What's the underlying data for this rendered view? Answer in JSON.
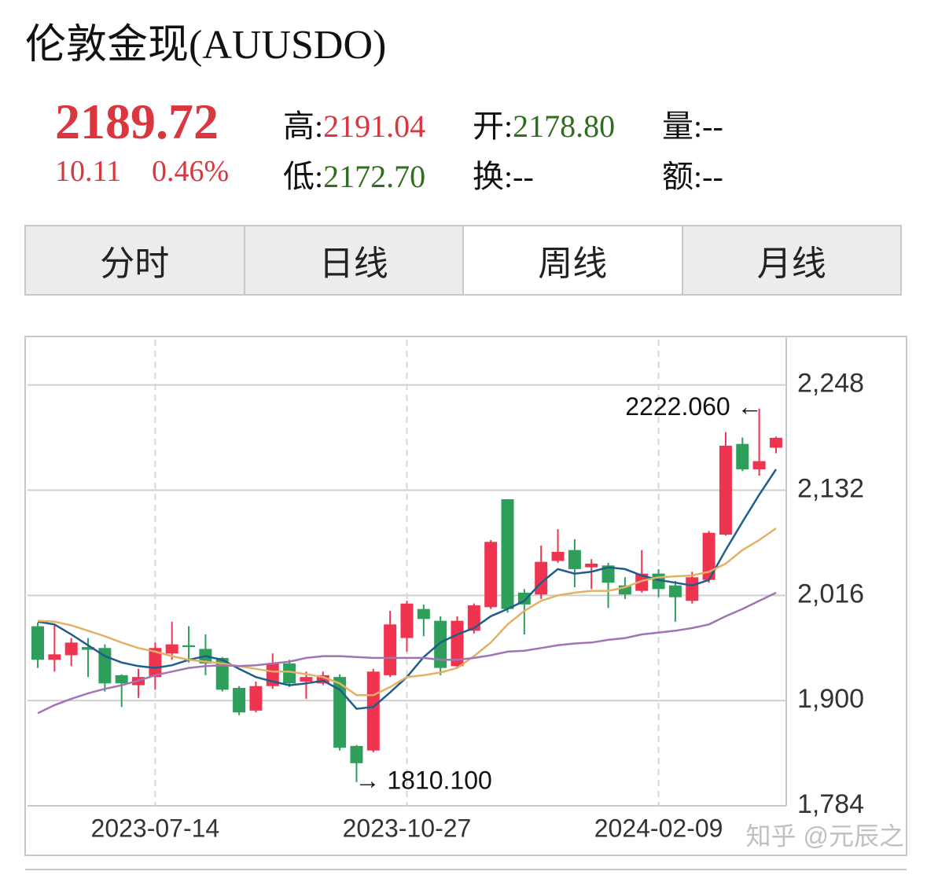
{
  "header": {
    "title": "伦敦金现(AUUSDO)",
    "price": "2189.72",
    "change": "10.11",
    "change_pct": "0.46%",
    "stats": [
      {
        "label": "高:",
        "value": "2191.04",
        "tone": "up"
      },
      {
        "label": "开:",
        "value": "2178.80",
        "tone": "down"
      },
      {
        "label": "量:",
        "value": "--",
        "tone": "plain"
      },
      {
        "label": "低:",
        "value": "2172.70",
        "tone": "down"
      },
      {
        "label": "换:",
        "value": "--",
        "tone": "plain"
      },
      {
        "label": "额:",
        "value": "--",
        "tone": "plain"
      }
    ]
  },
  "tabs": {
    "items": [
      "分时",
      "日线",
      "周线",
      "月线"
    ],
    "selected": 2
  },
  "chart_data": {
    "type": "candlestick",
    "categories": [
      null,
      null,
      null,
      null,
      null,
      null,
      null,
      "2023-07-14",
      null,
      null,
      null,
      null,
      null,
      null,
      null,
      null,
      null,
      null,
      null,
      null,
      null,
      null,
      "2023-10-27",
      null,
      null,
      null,
      null,
      null,
      null,
      null,
      null,
      null,
      null,
      null,
      null,
      null,
      null,
      "2024-02-09",
      null,
      null,
      null,
      null,
      null,
      null,
      null
    ],
    "open": [
      1982,
      1945,
      1950,
      1959,
      1958,
      1928,
      1917,
      1926,
      1952,
      1961,
      1957,
      1947,
      1914,
      1889,
      1916,
      1941,
      1921,
      1919,
      1926,
      1850,
      1845,
      1928,
      1969,
      2001,
      1988,
      1938,
      1977,
      2003,
      2122,
      2019,
      2017,
      2054,
      2066,
      2047,
      2049,
      2027,
      2021,
      2040,
      2027,
      2010,
      2033,
      2083,
      2183,
      2155,
      2178.8
    ],
    "high": [
      1986,
      1984,
      1969,
      1969,
      1962,
      1929,
      1935,
      1964,
      1987,
      1982,
      1973,
      1948,
      1916,
      1921,
      1952,
      1945,
      1932,
      1932,
      1929,
      1851,
      1935,
      1999,
      2010,
      2006,
      1993,
      1993,
      2007,
      2077,
      2122,
      2023,
      2071,
      2089,
      2078,
      2056,
      2052,
      2036,
      2066,
      2045,
      2032,
      2042,
      2087,
      2196,
      2190,
      2222.06,
      2191.04
    ],
    "low": [
      1936,
      1932,
      1938,
      1926,
      1910,
      1893,
      1903,
      1912,
      1945,
      1942,
      1928,
      1910,
      1884,
      1887,
      1913,
      1915,
      1902,
      1917,
      1845,
      1810.1,
      1843,
      1926,
      1954,
      1971,
      1928,
      1936,
      1974,
      2001,
      1997,
      1973,
      2012,
      2052,
      2025,
      2023,
      2002,
      2012,
      2019,
      2014,
      1987,
      2007,
      2030,
      2082,
      2153,
      2148,
      2172.7
    ],
    "close": [
      1945,
      1951,
      1964,
      1956,
      1919,
      1919,
      1926,
      1958,
      1962,
      1959,
      1941,
      1912,
      1887,
      1916,
      1941,
      1919,
      1926,
      1928,
      1848,
      1831,
      1932,
      1984,
      2007,
      1990,
      1936,
      1988,
      2005,
      2075,
      2001,
      2006,
      2053,
      2064,
      2045,
      2051,
      2030,
      2017,
      2040,
      2023,
      2014,
      2036,
      2085,
      2181,
      2155,
      2164,
      2189.72
    ],
    "up_color": "#f0334f",
    "down_color": "#2e9e5b",
    "ma_lines": [
      {
        "color": "#1e5d8c",
        "values": [
          1987,
          1984,
          1973,
          1961,
          1949,
          1942,
          1938,
          1936,
          1939,
          1945,
          1949,
          1945,
          1935,
          1926,
          1921,
          1917,
          1919,
          1922,
          1912,
          1891,
          1893,
          1909,
          1926,
          1948,
          1964,
          1973,
          1980,
          1993,
          2001,
          2010,
          2030,
          2045,
          2040,
          2042,
          2047,
          2045,
          2038,
          2033,
          2030,
          2027,
          2033,
          2066,
          2097,
          2127,
          2155
        ]
      },
      {
        "color": "#e2b264",
        "values": [
          1988,
          1987,
          1983,
          1977,
          1971,
          1964,
          1958,
          1954,
          1949,
          1945,
          1943,
          1941,
          1938,
          1935,
          1932,
          1932,
          1929,
          1926,
          1919,
          1906,
          1906,
          1915,
          1926,
          1928,
          1931,
          1936,
          1949,
          1964,
          1984,
          1999,
          2010,
          2016,
          2019,
          2021,
          2021,
          2025,
          2032,
          2036,
          2037,
          2038,
          2042,
          2051,
          2066,
          2077,
          2090
        ]
      },
      {
        "color": "#a274b4",
        "values": [
          1886,
          1895,
          1902,
          1908,
          1913,
          1917,
          1922,
          1928,
          1932,
          1936,
          1938,
          1939,
          1938,
          1939,
          1941,
          1943,
          1947,
          1949,
          1949,
          1948,
          1947,
          1947,
          1947,
          1947,
          1945,
          1945,
          1947,
          1950,
          1954,
          1955,
          1958,
          1961,
          1963,
          1964,
          1967,
          1969,
          1973,
          1975,
          1977,
          1980,
          1984,
          1993,
          2001,
          2010,
          2019
        ]
      }
    ],
    "annotations": [
      {
        "label": "2222.060 ←",
        "value": 2222.06,
        "of": "high"
      },
      {
        "label": "→ 1810.100",
        "value": 1810.1,
        "of": "low"
      }
    ],
    "ylim": [
      1784,
      2298
    ],
    "yticks": [
      {
        "value": 1784,
        "label": "1,784"
      },
      {
        "value": 1900,
        "label": "1,900"
      },
      {
        "value": 2016,
        "label": "2,016"
      },
      {
        "value": 2132,
        "label": "2,132"
      },
      {
        "value": 2248,
        "label": "2,248"
      }
    ],
    "grid": true,
    "watermark": "知乎 @元辰之"
  }
}
